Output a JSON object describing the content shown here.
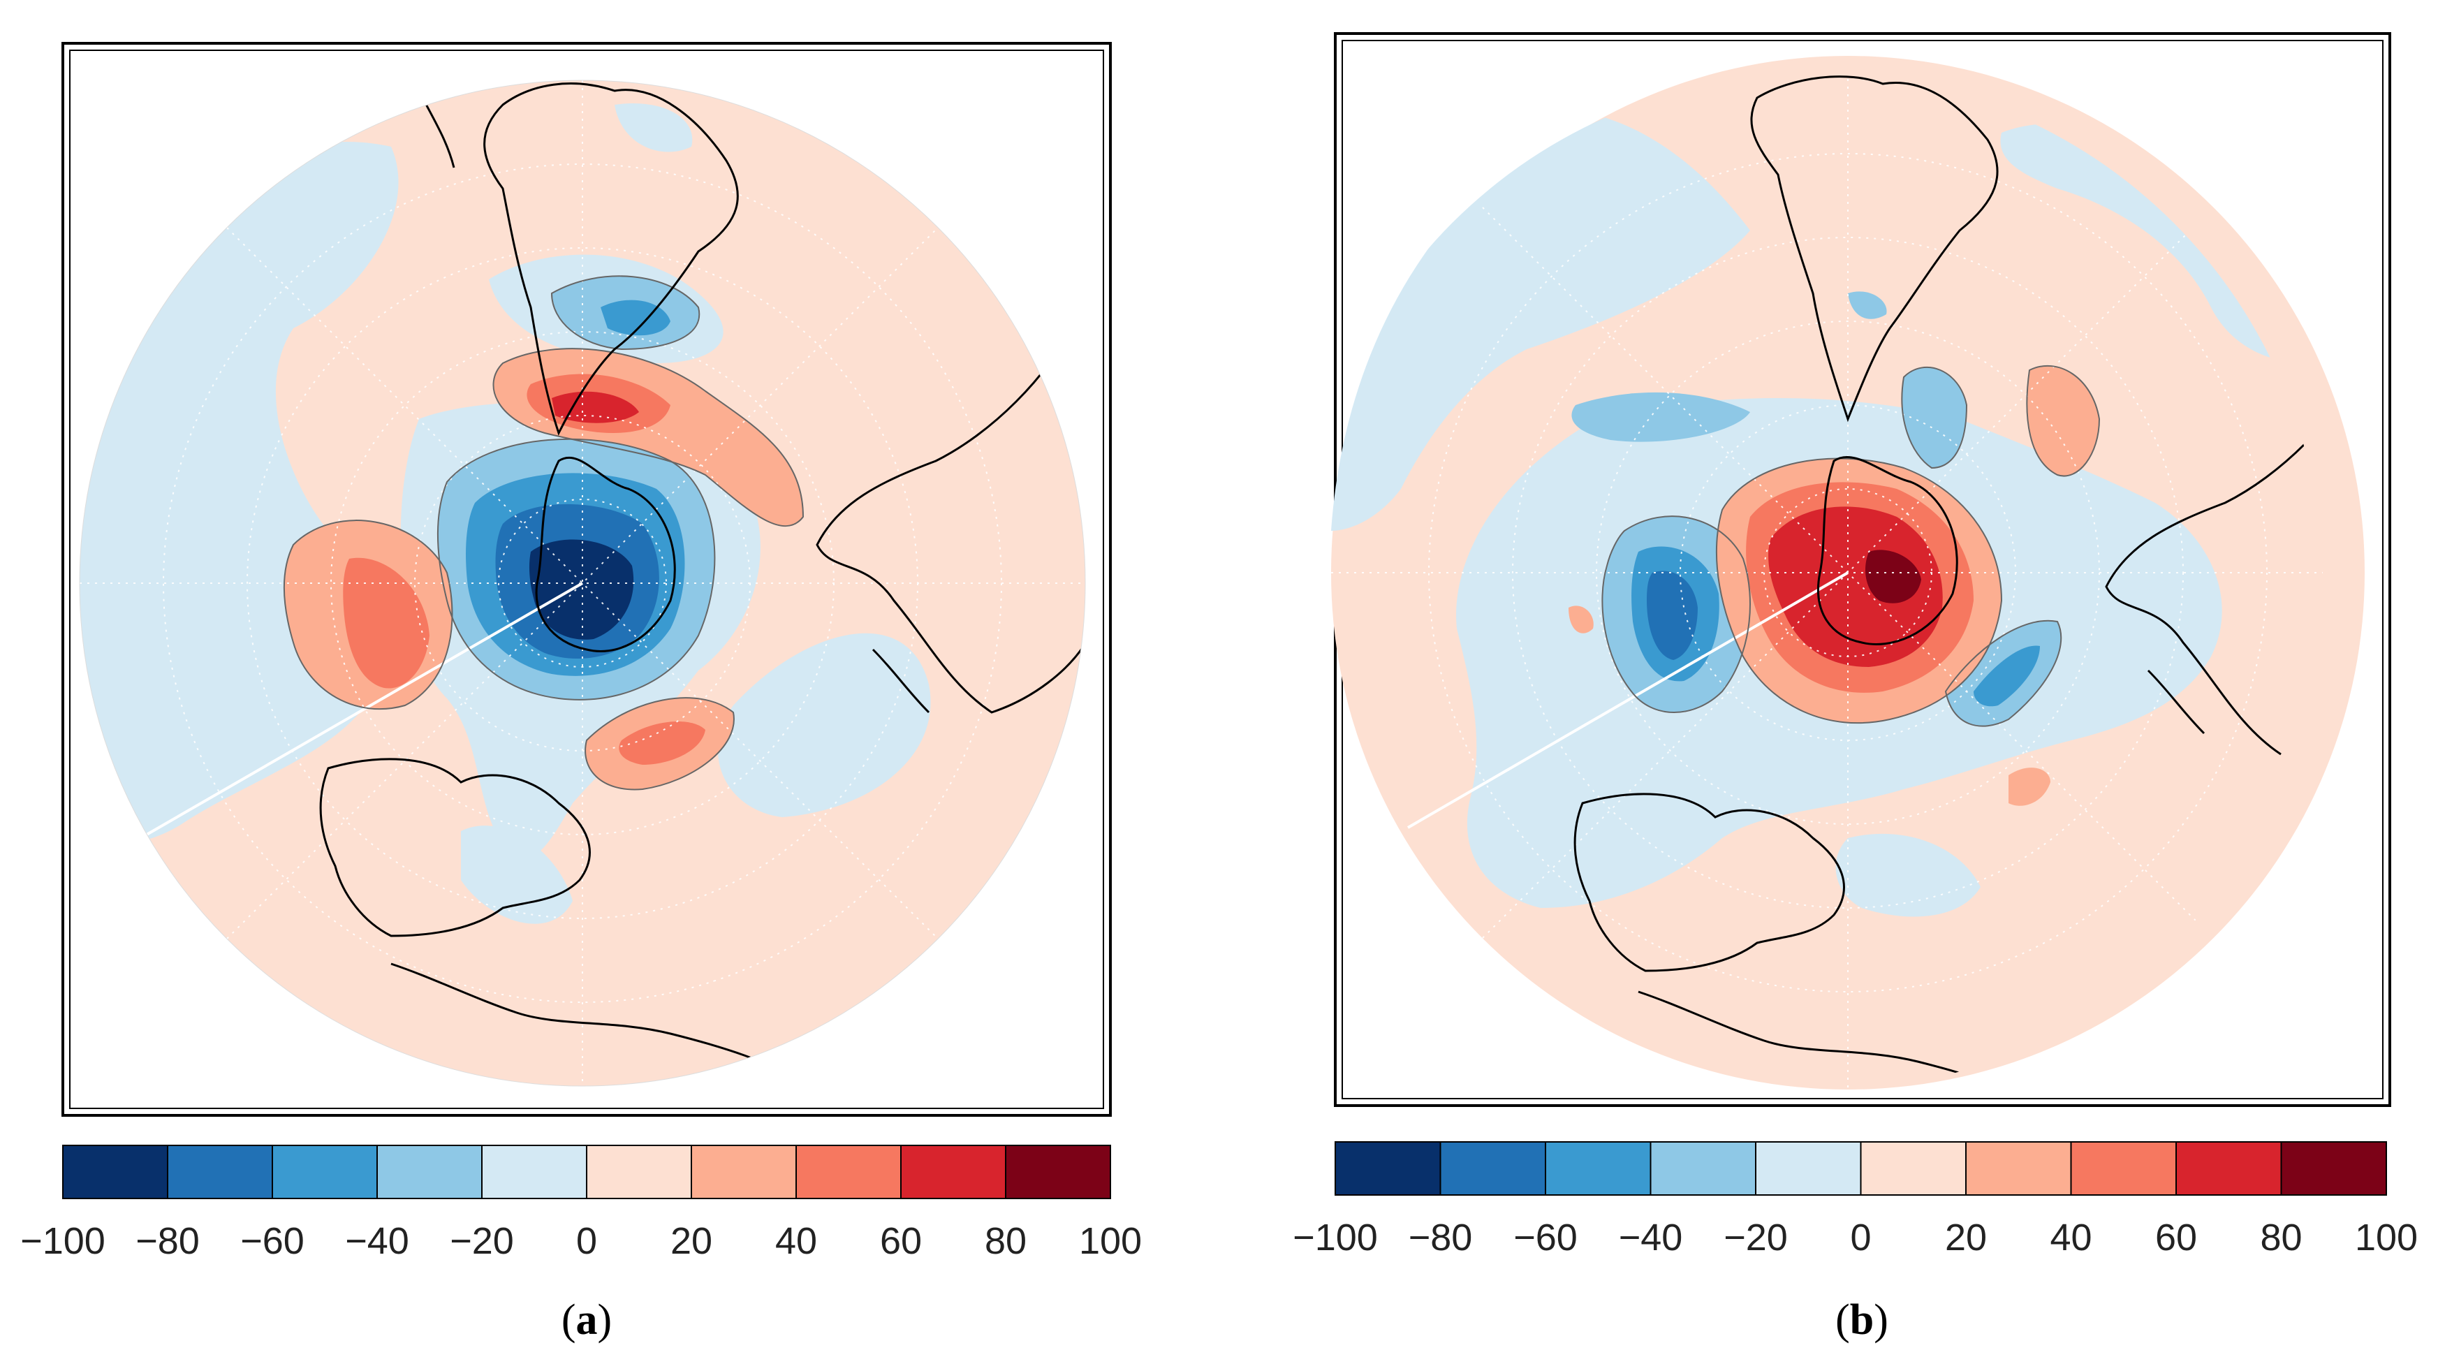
{
  "figure": {
    "panels": [
      {
        "id": "a",
        "label": "a",
        "pattern": "negative-center"
      },
      {
        "id": "b",
        "label": "b",
        "pattern": "positive-center"
      }
    ],
    "colorbar": {
      "ticks": [
        "−100",
        "−80",
        "−60",
        "−40",
        "−20",
        "0",
        "20",
        "40",
        "60",
        "80",
        "100"
      ],
      "colors": [
        "#08306b",
        "#2171b5",
        "#3a9ad0",
        "#8ec8e6",
        "#d4e9f4",
        "#fde0d2",
        "#fcae91",
        "#f67860",
        "#d8242d",
        "#7c0217"
      ]
    },
    "caption_open": "(",
    "caption_close": ")"
  }
}
